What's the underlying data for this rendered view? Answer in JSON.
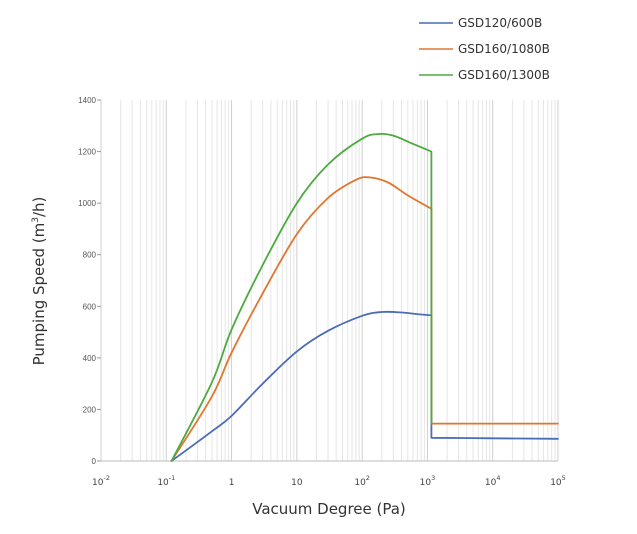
{
  "chart_data": {
    "type": "line",
    "xlabel": "Vacuum Degree (Pa)",
    "ylabel": "Pumping Speed (m",
    "ylabel_sup": "3",
    "ylabel_tail": "/h)",
    "x_scale": "log",
    "xlim": [
      0.01,
      100000
    ],
    "ylim": [
      0,
      1400
    ],
    "grid": true,
    "legend_position": "top-right",
    "y_ticks": [
      "0",
      "200",
      "400",
      "600",
      "800",
      "1000",
      "1200",
      "1400"
    ],
    "y_tick_values": [
      0,
      200,
      400,
      600,
      800,
      1000,
      1200,
      1400
    ],
    "x_ticks": [
      {
        "base": "10",
        "exp": "-2",
        "value": 0.01
      },
      {
        "base": "10",
        "exp": "-1",
        "value": 0.1
      },
      {
        "base": "1",
        "exp": "",
        "value": 1
      },
      {
        "base": "10",
        "exp": "",
        "value": 10
      },
      {
        "base": "10",
        "exp": "2",
        "value": 100
      },
      {
        "base": "10",
        "exp": "3",
        "value": 1000
      },
      {
        "base": "10",
        "exp": "4",
        "value": 10000
      },
      {
        "base": "10",
        "exp": "5",
        "value": 100000
      }
    ],
    "series": [
      {
        "name": "GSD120/600B",
        "color": "#4a6db5",
        "points": [
          [
            0.12,
            0
          ],
          [
            0.5,
            115
          ],
          [
            1,
            175
          ],
          [
            3,
            300
          ],
          [
            10,
            425
          ],
          [
            30,
            505
          ],
          [
            100,
            563
          ],
          [
            200,
            578
          ],
          [
            400,
            576
          ],
          [
            800,
            568
          ],
          [
            1150,
            565
          ],
          [
            1150,
            90
          ],
          [
            10000,
            88
          ],
          [
            100000,
            86
          ]
        ]
      },
      {
        "name": "GSD160/1080B",
        "color": "#e0762e",
        "points": [
          [
            0.12,
            0
          ],
          [
            0.5,
            250
          ],
          [
            1,
            420
          ],
          [
            3,
            650
          ],
          [
            10,
            880
          ],
          [
            30,
            1020
          ],
          [
            80,
            1090
          ],
          [
            130,
            1100
          ],
          [
            250,
            1080
          ],
          [
            500,
            1030
          ],
          [
            1150,
            978
          ],
          [
            1150,
            145
          ],
          [
            10000,
            145
          ],
          [
            100000,
            145
          ]
        ]
      },
      {
        "name": "GSD160/1300B",
        "color": "#4caa3f",
        "points": [
          [
            0.12,
            0
          ],
          [
            0.5,
            305
          ],
          [
            1,
            510
          ],
          [
            3,
            760
          ],
          [
            10,
            1000
          ],
          [
            30,
            1150
          ],
          [
            100,
            1250
          ],
          [
            180,
            1268
          ],
          [
            300,
            1262
          ],
          [
            600,
            1230
          ],
          [
            1150,
            1200
          ],
          [
            1150,
            145
          ]
        ]
      }
    ]
  }
}
